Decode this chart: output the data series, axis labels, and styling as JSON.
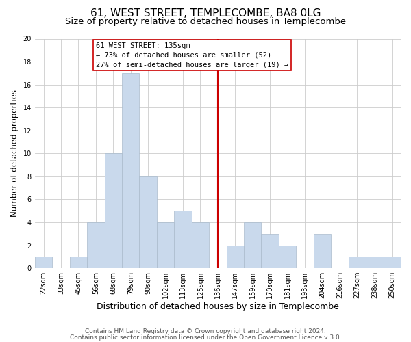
{
  "title": "61, WEST STREET, TEMPLECOMBE, BA8 0LG",
  "subtitle": "Size of property relative to detached houses in Templecombe",
  "xlabel": "Distribution of detached houses by size in Templecombe",
  "ylabel": "Number of detached properties",
  "footer_line1": "Contains HM Land Registry data © Crown copyright and database right 2024.",
  "footer_line2": "Contains public sector information licensed under the Open Government Licence v 3.0.",
  "bar_labels": [
    "22sqm",
    "33sqm",
    "45sqm",
    "56sqm",
    "68sqm",
    "79sqm",
    "90sqm",
    "102sqm",
    "113sqm",
    "125sqm",
    "136sqm",
    "147sqm",
    "159sqm",
    "170sqm",
    "181sqm",
    "193sqm",
    "204sqm",
    "216sqm",
    "227sqm",
    "238sqm",
    "250sqm"
  ],
  "bar_values": [
    1,
    0,
    1,
    4,
    10,
    17,
    8,
    4,
    5,
    4,
    0,
    2,
    4,
    3,
    2,
    0,
    3,
    0,
    1,
    1,
    1
  ],
  "bar_color": "#c9d9ec",
  "bar_edge_color": "#aabbcc",
  "vline_index": 10,
  "vline_color": "#cc0000",
  "annotation_title": "61 WEST STREET: 135sqm",
  "annotation_line1": "← 73% of detached houses are smaller (52)",
  "annotation_line2": "27% of semi-detached houses are larger (19) →",
  "annotation_box_color": "#ffffff",
  "annotation_box_edge_color": "#cc0000",
  "ylim": [
    0,
    20
  ],
  "yticks": [
    0,
    2,
    4,
    6,
    8,
    10,
    12,
    14,
    16,
    18,
    20
  ],
  "background_color": "#ffffff",
  "grid_color": "#cccccc",
  "title_fontsize": 11,
  "subtitle_fontsize": 9.5,
  "xlabel_fontsize": 9,
  "ylabel_fontsize": 8.5,
  "tick_fontsize": 7,
  "annotation_fontsize": 7.5,
  "footer_fontsize": 6.5
}
